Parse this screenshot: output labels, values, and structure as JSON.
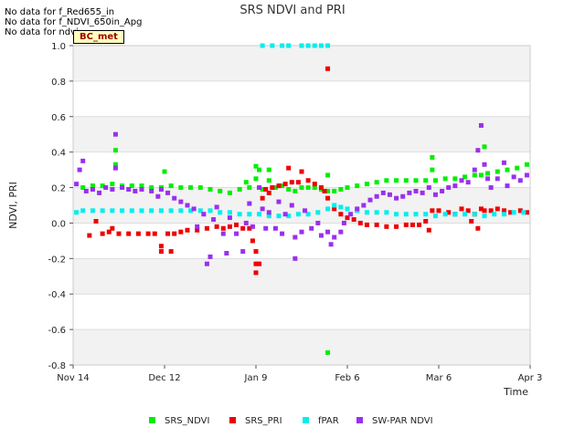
{
  "no_data_notes": [
    "No data for f_Red655_in",
    "No data for f_NDVI_650in_Apg",
    "No data for ndvi"
  ],
  "site_tag": "BC_met",
  "chart_data": {
    "type": "scatter",
    "title": "SRS NDVI and PRI",
    "xlabel": "Time",
    "ylabel": "NDVI, PRI",
    "ylim": [
      -0.8,
      1.0
    ],
    "yticks": [
      -0.8,
      -0.6,
      -0.4,
      -0.2,
      0.0,
      0.2,
      0.4,
      0.6,
      0.8,
      1.0
    ],
    "ytick_labels": [
      "-0.8",
      "-0.6",
      "-0.4",
      "-0.2",
      "0.0",
      "0.2",
      "0.4",
      "0.6",
      "0.8",
      "1.0"
    ],
    "xlim_days": [
      0,
      140
    ],
    "xticks": [
      {
        "day": 0,
        "label": "Nov 14"
      },
      {
        "day": 28,
        "label": "Dec 12"
      },
      {
        "day": 56,
        "label": "Jan 9"
      },
      {
        "day": 84,
        "label": "Feb 6"
      },
      {
        "day": 112,
        "label": "Mar 6"
      },
      {
        "day": 140,
        "label": "Apr 3"
      }
    ],
    "legend_position": "bottom",
    "series": [
      {
        "name": "SRS_NDVI",
        "color": "#00ee00",
        "points": [
          [
            3,
            0.2
          ],
          [
            6,
            0.21
          ],
          [
            9,
            0.21
          ],
          [
            12,
            0.22
          ],
          [
            13,
            0.41
          ],
          [
            13,
            0.33
          ],
          [
            15,
            0.21
          ],
          [
            18,
            0.21
          ],
          [
            21,
            0.21
          ],
          [
            24,
            0.2
          ],
          [
            27,
            0.2
          ],
          [
            28,
            0.29
          ],
          [
            30,
            0.21
          ],
          [
            33,
            0.2
          ],
          [
            36,
            0.2
          ],
          [
            39,
            0.2
          ],
          [
            42,
            0.19
          ],
          [
            45,
            0.18
          ],
          [
            48,
            0.17
          ],
          [
            51,
            0.19
          ],
          [
            53,
            0.23
          ],
          [
            54,
            0.2
          ],
          [
            56,
            0.25
          ],
          [
            56,
            0.32
          ],
          [
            57,
            0.3
          ],
          [
            58,
            0.19
          ],
          [
            60,
            0.3
          ],
          [
            60,
            0.24
          ],
          [
            62,
            0.2
          ],
          [
            64,
            0.21
          ],
          [
            66,
            0.19
          ],
          [
            68,
            0.18
          ],
          [
            70,
            0.2
          ],
          [
            72,
            0.2
          ],
          [
            74,
            0.2
          ],
          [
            76,
            0.19
          ],
          [
            78,
            0.18
          ],
          [
            78,
            0.27
          ],
          [
            80,
            0.18
          ],
          [
            82,
            0.19
          ],
          [
            84,
            0.2
          ],
          [
            87,
            0.21
          ],
          [
            90,
            0.22
          ],
          [
            93,
            0.23
          ],
          [
            96,
            0.24
          ],
          [
            99,
            0.24
          ],
          [
            102,
            0.24
          ],
          [
            105,
            0.24
          ],
          [
            108,
            0.24
          ],
          [
            110,
            0.37
          ],
          [
            110,
            0.3
          ],
          [
            111,
            0.24
          ],
          [
            114,
            0.25
          ],
          [
            117,
            0.25
          ],
          [
            120,
            0.26
          ],
          [
            123,
            0.27
          ],
          [
            125,
            0.27
          ],
          [
            126,
            0.43
          ],
          [
            127,
            0.28
          ],
          [
            130,
            0.29
          ],
          [
            133,
            0.3
          ],
          [
            136,
            0.31
          ],
          [
            139,
            0.33
          ],
          [
            78,
            -0.73
          ]
        ]
      },
      {
        "name": "SRS_PRI",
        "color": "#ee0000",
        "points": [
          [
            5,
            -0.07
          ],
          [
            7,
            0.01
          ],
          [
            9,
            -0.06
          ],
          [
            11,
            -0.05
          ],
          [
            12,
            -0.03
          ],
          [
            14,
            -0.06
          ],
          [
            17,
            -0.06
          ],
          [
            20,
            -0.06
          ],
          [
            23,
            -0.06
          ],
          [
            25,
            -0.06
          ],
          [
            27,
            -0.16
          ],
          [
            27,
            -0.13
          ],
          [
            29,
            -0.06
          ],
          [
            30,
            -0.16
          ],
          [
            31,
            -0.06
          ],
          [
            33,
            -0.05
          ],
          [
            35,
            -0.04
          ],
          [
            38,
            -0.04
          ],
          [
            41,
            -0.03
          ],
          [
            44,
            -0.02
          ],
          [
            46,
            -0.03
          ],
          [
            48,
            -0.02
          ],
          [
            50,
            -0.01
          ],
          [
            52,
            -0.03
          ],
          [
            54,
            -0.03
          ],
          [
            55,
            -0.1
          ],
          [
            56,
            -0.16
          ],
          [
            56,
            -0.23
          ],
          [
            56,
            -0.28
          ],
          [
            57,
            -0.23
          ],
          [
            58,
            0.14
          ],
          [
            59,
            0.19
          ],
          [
            60,
            0.17
          ],
          [
            61,
            0.2
          ],
          [
            63,
            0.21
          ],
          [
            65,
            0.22
          ],
          [
            66,
            0.31
          ],
          [
            67,
            0.23
          ],
          [
            69,
            0.23
          ],
          [
            70,
            0.29
          ],
          [
            72,
            0.24
          ],
          [
            74,
            0.22
          ],
          [
            76,
            0.2
          ],
          [
            77,
            0.18
          ],
          [
            78,
            0.14
          ],
          [
            78,
            0.87
          ],
          [
            80,
            0.08
          ],
          [
            82,
            0.05
          ],
          [
            84,
            0.03
          ],
          [
            86,
            0.02
          ],
          [
            88,
            0.0
          ],
          [
            90,
            -0.01
          ],
          [
            93,
            -0.01
          ],
          [
            96,
            -0.02
          ],
          [
            99,
            -0.02
          ],
          [
            102,
            -0.01
          ],
          [
            104,
            -0.01
          ],
          [
            106,
            -0.01
          ],
          [
            108,
            0.01
          ],
          [
            109,
            -0.04
          ],
          [
            110,
            0.07
          ],
          [
            112,
            0.07
          ],
          [
            115,
            0.06
          ],
          [
            117,
            0.05
          ],
          [
            119,
            0.08
          ],
          [
            121,
            0.07
          ],
          [
            122,
            0.01
          ],
          [
            123,
            0.05
          ],
          [
            124,
            -0.03
          ],
          [
            125,
            0.08
          ],
          [
            126,
            0.07
          ],
          [
            128,
            0.07
          ],
          [
            130,
            0.08
          ],
          [
            132,
            0.07
          ],
          [
            134,
            0.06
          ],
          [
            137,
            0.07
          ],
          [
            139,
            0.06
          ]
        ]
      },
      {
        "name": "fPAR",
        "color": "#00eeee",
        "points": [
          [
            1,
            0.06
          ],
          [
            3,
            0.07
          ],
          [
            6,
            0.07
          ],
          [
            9,
            0.07
          ],
          [
            12,
            0.07
          ],
          [
            15,
            0.07
          ],
          [
            18,
            0.07
          ],
          [
            21,
            0.07
          ],
          [
            24,
            0.07
          ],
          [
            27,
            0.07
          ],
          [
            30,
            0.07
          ],
          [
            33,
            0.07
          ],
          [
            36,
            0.07
          ],
          [
            39,
            0.07
          ],
          [
            42,
            0.07
          ],
          [
            45,
            0.06
          ],
          [
            48,
            0.06
          ],
          [
            51,
            0.05
          ],
          [
            54,
            0.05
          ],
          [
            57,
            0.05
          ],
          [
            60,
            0.04
          ],
          [
            63,
            0.04
          ],
          [
            66,
            0.04
          ],
          [
            69,
            0.05
          ],
          [
            72,
            0.05
          ],
          [
            75,
            0.06
          ],
          [
            78,
            0.08
          ],
          [
            80,
            0.1
          ],
          [
            82,
            0.09
          ],
          [
            84,
            0.08
          ],
          [
            87,
            0.07
          ],
          [
            90,
            0.06
          ],
          [
            93,
            0.06
          ],
          [
            96,
            0.06
          ],
          [
            99,
            0.05
          ],
          [
            102,
            0.05
          ],
          [
            105,
            0.05
          ],
          [
            108,
            0.05
          ],
          [
            111,
            0.04
          ],
          [
            114,
            0.05
          ],
          [
            117,
            0.05
          ],
          [
            120,
            0.05
          ],
          [
            123,
            0.05
          ],
          [
            126,
            0.04
          ],
          [
            129,
            0.05
          ],
          [
            132,
            0.05
          ],
          [
            135,
            0.06
          ],
          [
            138,
            0.06
          ],
          [
            58,
            1.0
          ],
          [
            61,
            1.0
          ],
          [
            64,
            1.0
          ],
          [
            66,
            1.0
          ],
          [
            70,
            1.0
          ],
          [
            72,
            1.0
          ],
          [
            74,
            1.0
          ],
          [
            76,
            1.0
          ],
          [
            78,
            1.0
          ]
        ]
      },
      {
        "name": "SW-PAR NDVI",
        "color": "#9a30ee",
        "points": [
          [
            1,
            0.22
          ],
          [
            2,
            0.3
          ],
          [
            3,
            0.35
          ],
          [
            4,
            0.18
          ],
          [
            6,
            0.19
          ],
          [
            8,
            0.17
          ],
          [
            10,
            0.2
          ],
          [
            12,
            0.19
          ],
          [
            13,
            0.5
          ],
          [
            13,
            0.31
          ],
          [
            15,
            0.2
          ],
          [
            17,
            0.19
          ],
          [
            19,
            0.18
          ],
          [
            21,
            0.19
          ],
          [
            24,
            0.18
          ],
          [
            26,
            0.15
          ],
          [
            27,
            0.19
          ],
          [
            29,
            0.17
          ],
          [
            31,
            0.14
          ],
          [
            33,
            0.12
          ],
          [
            35,
            0.1
          ],
          [
            37,
            0.08
          ],
          [
            38,
            -0.02
          ],
          [
            40,
            0.05
          ],
          [
            41,
            -0.23
          ],
          [
            42,
            -0.19
          ],
          [
            43,
            0.02
          ],
          [
            44,
            0.09
          ],
          [
            46,
            -0.06
          ],
          [
            47,
            -0.17
          ],
          [
            48,
            0.03
          ],
          [
            50,
            -0.06
          ],
          [
            52,
            -0.16
          ],
          [
            53,
            0.0
          ],
          [
            54,
            0.11
          ],
          [
            55,
            -0.02
          ],
          [
            57,
            0.2
          ],
          [
            58,
            0.08
          ],
          [
            59,
            -0.03
          ],
          [
            60,
            0.06
          ],
          [
            62,
            -0.03
          ],
          [
            63,
            0.12
          ],
          [
            64,
            -0.06
          ],
          [
            65,
            0.05
          ],
          [
            67,
            0.1
          ],
          [
            68,
            -0.08
          ],
          [
            68,
            -0.2
          ],
          [
            70,
            -0.05
          ],
          [
            71,
            0.07
          ],
          [
            73,
            -0.03
          ],
          [
            75,
            0.0
          ],
          [
            76,
            -0.07
          ],
          [
            78,
            -0.05
          ],
          [
            79,
            -0.12
          ],
          [
            80,
            -0.08
          ],
          [
            82,
            -0.05
          ],
          [
            83,
            0.0
          ],
          [
            85,
            0.05
          ],
          [
            87,
            0.08
          ],
          [
            89,
            0.1
          ],
          [
            91,
            0.13
          ],
          [
            93,
            0.15
          ],
          [
            95,
            0.17
          ],
          [
            97,
            0.16
          ],
          [
            99,
            0.14
          ],
          [
            101,
            0.15
          ],
          [
            103,
            0.17
          ],
          [
            105,
            0.18
          ],
          [
            107,
            0.17
          ],
          [
            109,
            0.2
          ],
          [
            111,
            0.16
          ],
          [
            113,
            0.18
          ],
          [
            115,
            0.2
          ],
          [
            117,
            0.21
          ],
          [
            119,
            0.24
          ],
          [
            121,
            0.23
          ],
          [
            123,
            0.3
          ],
          [
            124,
            0.41
          ],
          [
            125,
            0.55
          ],
          [
            126,
            0.33
          ],
          [
            127,
            0.25
          ],
          [
            128,
            0.2
          ],
          [
            130,
            0.25
          ],
          [
            132,
            0.34
          ],
          [
            133,
            0.21
          ],
          [
            135,
            0.26
          ],
          [
            137,
            0.24
          ],
          [
            139,
            0.27
          ]
        ]
      }
    ]
  }
}
